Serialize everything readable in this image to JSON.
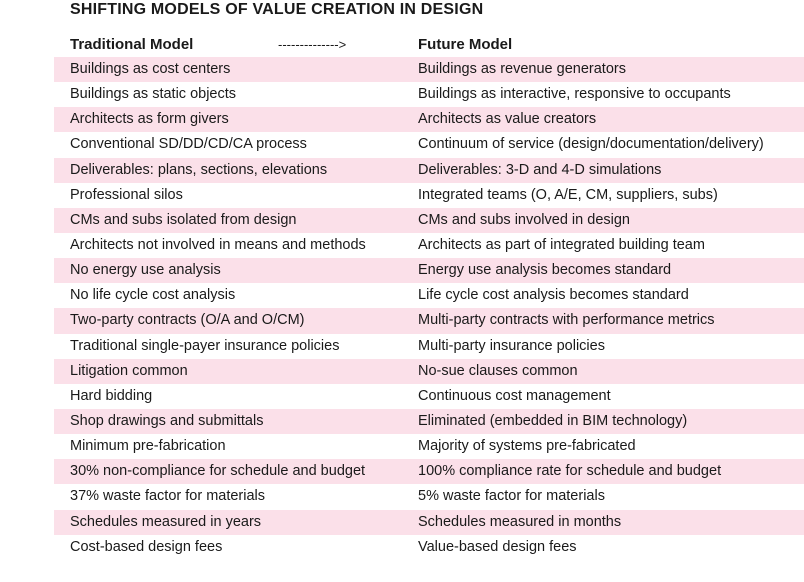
{
  "title": "SHIFTING MODELS OF VALUE CREATION IN DESIGN",
  "header": {
    "left": "Traditional Model",
    "arrow": "-------------->",
    "right": "Future Model"
  },
  "rows": [
    {
      "traditional": "Buildings as cost centers",
      "future": "Buildings as revenue generators"
    },
    {
      "traditional": "Buildings as static objects",
      "future": "Buildings as interactive, responsive to occupants"
    },
    {
      "traditional": "Architects as form givers",
      "future": "Architects as value creators"
    },
    {
      "traditional": "Conventional SD/DD/CD/CA process",
      "future": "Continuum of service (design/documentation/delivery)"
    },
    {
      "traditional": "Deliverables: plans, sections, elevations",
      "future": "Deliverables: 3-D and 4-D simulations"
    },
    {
      "traditional": "Professional silos",
      "future": "Integrated teams (O, A/E, CM, suppliers, subs)"
    },
    {
      "traditional": "CMs and subs isolated from design",
      "future": "CMs and subs involved in design"
    },
    {
      "traditional": "Architects not involved in means and methods",
      "future": "Architects as part of integrated building team"
    },
    {
      "traditional": "No energy use analysis",
      "future": "Energy use analysis becomes standard"
    },
    {
      "traditional": "No life cycle cost analysis",
      "future": "Life cycle cost analysis becomes standard"
    },
    {
      "traditional": "Two-party contracts (O/A and O/CM)",
      "future": "Multi-party contracts with performance metrics"
    },
    {
      "traditional": "Traditional single-payer insurance policies",
      "future": "Multi-party insurance policies"
    },
    {
      "traditional": "Litigation common",
      "future": "No-sue clauses common"
    },
    {
      "traditional": "Hard bidding",
      "future": "Continuous cost management"
    },
    {
      "traditional": "Shop drawings and submittals",
      "future": "Eliminated (embedded in BIM technology)"
    },
    {
      "traditional": "Minimum pre-fabrication",
      "future": "Majority of systems pre-fabricated"
    },
    {
      "traditional": "30% non-compliance for schedule and budget",
      "future": "100% compliance rate for schedule and budget"
    },
    {
      "traditional": "37% waste factor for materials",
      "future": "5% waste factor for materials"
    },
    {
      "traditional": "Schedules measured in years",
      "future": "Schedules measured in months"
    },
    {
      "traditional": "Cost-based design fees",
      "future": "Value-based design fees"
    }
  ],
  "colors": {
    "row_shade": "#fbe0e9",
    "text": "#1a1a1a"
  }
}
